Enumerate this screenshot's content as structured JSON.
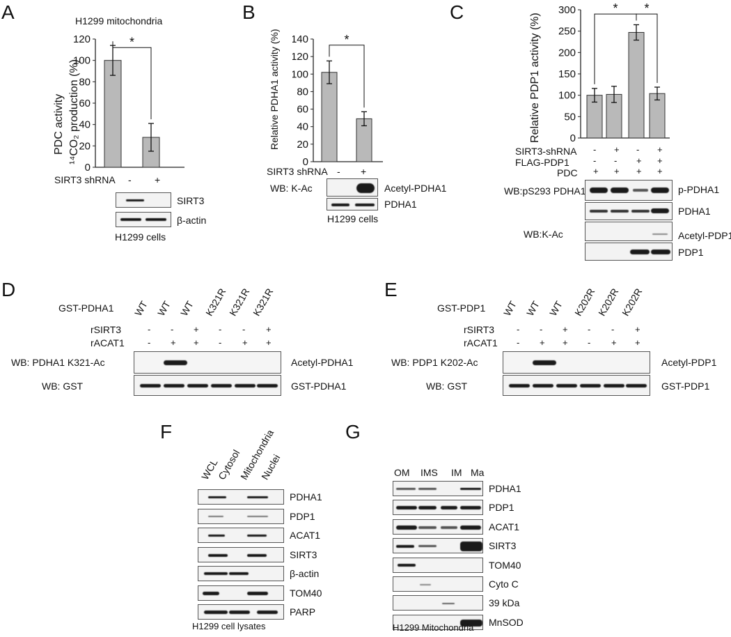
{
  "panels": {
    "A": {
      "letter": "A",
      "subtitle": "H1299 mitochondria",
      "ylabel_1": "PDC activity",
      "ylabel_2": "¹⁴CO₂ production (%)",
      "row_label": "SIRT3 shRNA",
      "conds": [
        "-",
        "+"
      ],
      "star": "*",
      "blot_labels": [
        "SIRT3",
        "β-actin"
      ],
      "footer": "H1299 cells"
    },
    "B": {
      "letter": "B",
      "ylabel": "Relative PDHA1 activity (%)",
      "row_label": "SIRT3 shRNA",
      "conds": [
        "-",
        "+"
      ],
      "star": "*",
      "wb_label": "WB: K-Ac",
      "blot_labels": [
        "Acetyl-PDHA1",
        "PDHA1"
      ],
      "footer": "H1299 cells"
    },
    "C": {
      "letter": "C",
      "ylabel": "Relative PDP1 activity (%)",
      "stars": [
        "*",
        "*"
      ],
      "rows": [
        {
          "label": "SIRT3-shRNA",
          "vals": [
            "-",
            "+",
            "-",
            "+"
          ]
        },
        {
          "label": "FLAG-PDP1",
          "vals": [
            "-",
            "-",
            "+",
            "+"
          ]
        },
        {
          "label": "PDC",
          "vals": [
            "+",
            "+",
            "+",
            "+"
          ]
        }
      ],
      "wb_labels": [
        "WB:pS293 PDHA1",
        "WB:K-Ac"
      ],
      "blot_labels": [
        "p-PDHA1",
        "PDHA1",
        "Acetyl-PDP1",
        "PDP1"
      ]
    },
    "D": {
      "letter": "D",
      "rows": [
        {
          "label": "GST-PDHA1",
          "vals": [
            "WT",
            "WT",
            "WT",
            "K321R",
            "K321R",
            "K321R"
          ]
        },
        {
          "label": "rSIRT3",
          "vals": [
            "-",
            "-",
            "+",
            "-",
            "-",
            "+"
          ]
        },
        {
          "label": "rACAT1",
          "vals": [
            "-",
            "+",
            "+",
            "-",
            "+",
            "+"
          ]
        }
      ],
      "wb_labels": [
        "WB: PDHA1 K321-Ac",
        "WB: GST"
      ],
      "blot_labels": [
        "Acetyl-PDHA1",
        "GST-PDHA1"
      ]
    },
    "E": {
      "letter": "E",
      "rows": [
        {
          "label": "GST-PDP1",
          "vals": [
            "WT",
            "WT",
            "WT",
            "K202R",
            "K202R",
            "K202R"
          ]
        },
        {
          "label": "rSIRT3",
          "vals": [
            "-",
            "-",
            "+",
            "-",
            "-",
            "+"
          ]
        },
        {
          "label": "rACAT1",
          "vals": [
            "-",
            "+",
            "+",
            "-",
            "+",
            "+"
          ]
        }
      ],
      "wb_labels": [
        "WB: PDP1 K202-Ac",
        "WB: GST"
      ],
      "blot_labels": [
        "Acetyl-PDP1",
        "GST-PDP1"
      ]
    },
    "F": {
      "letter": "F",
      "lanes": [
        "WCL",
        "Cytosol",
        "Mitochondria",
        "Nuclei"
      ],
      "blot_labels": [
        "PDHA1",
        "PDP1",
        "ACAT1",
        "SIRT3",
        "β-actin",
        "TOM40",
        "PARP"
      ],
      "footer": "H1299 cell lysates"
    },
    "G": {
      "letter": "G",
      "lanes": [
        "OM",
        "IMS",
        "IM",
        "Ma"
      ],
      "blot_labels": [
        "PDHA1",
        "PDP1",
        "ACAT1",
        "SIRT3",
        "TOM40",
        "Cyto C",
        "39 kDa",
        "MnSOD"
      ],
      "footer": "H1299 Mitochondria"
    }
  },
  "chart_data": [
    {
      "panel": "A",
      "type": "bar",
      "title": "H1299 mitochondria",
      "ylabel": "PDC activity ¹⁴CO₂ production (%)",
      "categories": [
        "-",
        "+"
      ],
      "values": [
        100,
        28
      ],
      "errors": [
        14,
        13
      ],
      "ylim": [
        0,
        120
      ],
      "yticks": [
        0,
        20,
        40,
        60,
        80,
        100,
        120
      ],
      "color": "#b9b9b9"
    },
    {
      "panel": "B",
      "type": "bar",
      "title": "",
      "ylabel": "Relative PDHA1 activity (%)",
      "categories": [
        "-",
        "+"
      ],
      "values": [
        102,
        49
      ],
      "errors": [
        13,
        8
      ],
      "ylim": [
        0,
        140
      ],
      "yticks": [
        0,
        20,
        40,
        60,
        80,
        100,
        120,
        140
      ],
      "color": "#b9b9b9"
    },
    {
      "panel": "C",
      "type": "bar",
      "title": "",
      "ylabel": "Relative PDP1 activity (%)",
      "categories": [
        "1",
        "2",
        "3",
        "4"
      ],
      "values": [
        100,
        102,
        247,
        104
      ],
      "errors": [
        16,
        19,
        18,
        15
      ],
      "ylim": [
        0,
        300
      ],
      "yticks": [
        0,
        50,
        100,
        150,
        200,
        250,
        300
      ],
      "color": "#b9b9b9"
    }
  ]
}
